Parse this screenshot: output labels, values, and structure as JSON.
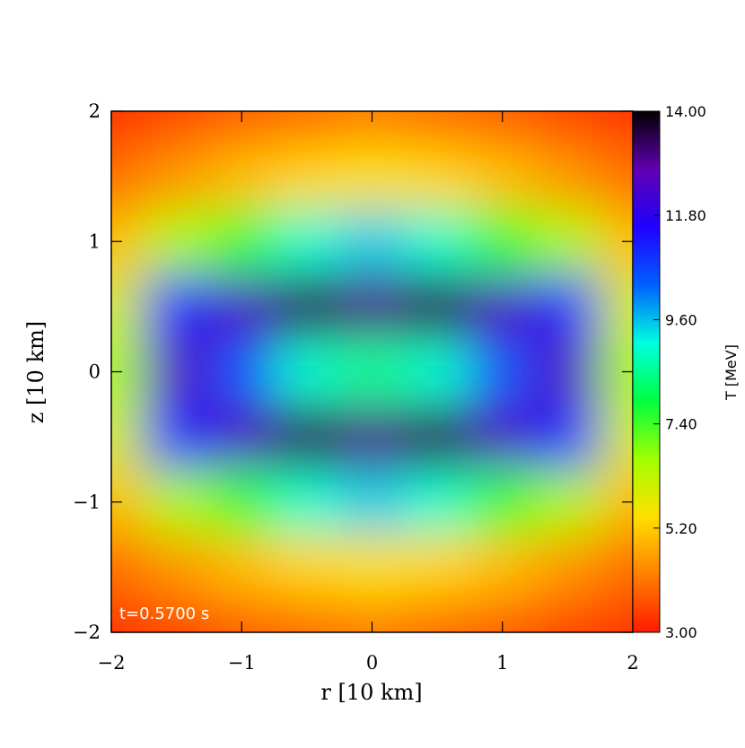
{
  "chart_data": {
    "type": "heatmap",
    "xlabel": "r [10 km]",
    "ylabel": "z [10 km]",
    "annotation": "t=0.5700 s",
    "colorbar_label": "T [MeV]",
    "x": [
      -2,
      -1.5,
      -1,
      -0.5,
      0,
      0.5,
      1,
      1.5,
      2
    ],
    "y": [
      2,
      1.5,
      1,
      0.5,
      0,
      -0.5,
      -1,
      -1.5,
      -2
    ],
    "values": [
      [
        3.3,
        3.5,
        3.8,
        4.0,
        4.2,
        4.0,
        3.8,
        3.5,
        3.3
      ],
      [
        4.0,
        4.5,
        5.0,
        5.3,
        5.5,
        5.3,
        5.0,
        4.5,
        4.0
      ],
      [
        5.0,
        6.5,
        7.5,
        9.0,
        9.5,
        9.0,
        7.5,
        6.5,
        5.0
      ],
      [
        6.0,
        11.0,
        12.5,
        13.5,
        13.0,
        13.5,
        12.5,
        11.0,
        6.0
      ],
      [
        6.5,
        12.5,
        10.5,
        9.0,
        8.5,
        9.0,
        10.5,
        12.5,
        6.5
      ],
      [
        6.0,
        11.0,
        12.5,
        13.5,
        13.0,
        13.5,
        12.5,
        11.0,
        6.0
      ],
      [
        5.0,
        6.5,
        7.5,
        9.0,
        9.5,
        9.0,
        7.5,
        6.5,
        5.0
      ],
      [
        4.0,
        4.5,
        5.0,
        5.3,
        5.5,
        5.3,
        5.0,
        4.5,
        4.0
      ],
      [
        3.3,
        3.5,
        3.8,
        4.0,
        4.2,
        4.0,
        3.8,
        3.5,
        3.3
      ]
    ],
    "xlim": [
      -2,
      2
    ],
    "ylim": [
      -2,
      2
    ],
    "xticks": [
      {
        "value": -2,
        "label": "−2"
      },
      {
        "value": -1,
        "label": "−1"
      },
      0,
      1,
      2
    ],
    "yticks": [
      {
        "value": -2,
        "label": "−2"
      },
      {
        "value": -1,
        "label": "−1"
      },
      0,
      1,
      2
    ],
    "clim": [
      3,
      14
    ],
    "cticks": [
      {
        "value": 3,
        "label": "3.00"
      },
      {
        "value": 5.2,
        "label": "5.20"
      },
      {
        "value": 7.4,
        "label": "7.40"
      },
      {
        "value": 9.6,
        "label": "9.60"
      },
      {
        "value": 11.8,
        "label": "11.80"
      },
      {
        "value": 14,
        "label": "14.00"
      }
    ],
    "colormap": [
      "#ff1a00",
      "#ff8000",
      "#ffe000",
      "#a0ff00",
      "#00ff40",
      "#00ffe0",
      "#0060ff",
      "#2000ff",
      "#6000b0",
      "#000000"
    ]
  }
}
